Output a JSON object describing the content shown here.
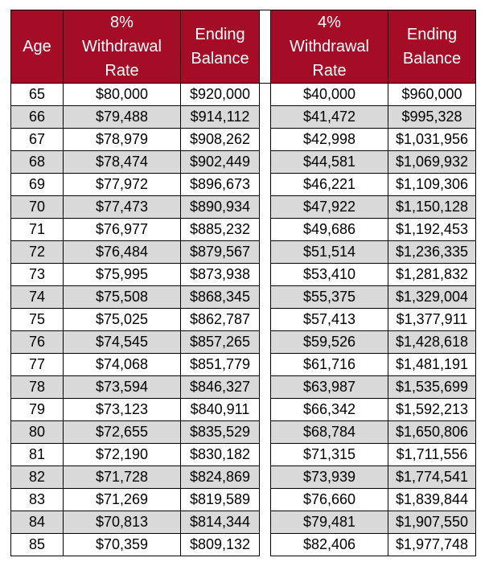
{
  "headers": {
    "age": "Age",
    "rate8": [
      "8%",
      "Withdrawal",
      "Rate"
    ],
    "bal8": [
      "Ending",
      "Balance"
    ],
    "rate4": [
      "4%",
      "Withdrawal",
      "Rate"
    ],
    "bal4": [
      "Ending",
      "Balance"
    ]
  },
  "rows": [
    {
      "age": "65",
      "rate8": "$80,000",
      "bal8": "$920,000",
      "rate4": "$40,000",
      "bal4": "$960,000"
    },
    {
      "age": "66",
      "rate8": "$79,488",
      "bal8": "$914,112",
      "rate4": "$41,472",
      "bal4": "$995,328"
    },
    {
      "age": "67",
      "rate8": "$78,979",
      "bal8": "$908,262",
      "rate4": "$42,998",
      "bal4": "$1,031,956"
    },
    {
      "age": "68",
      "rate8": "$78,474",
      "bal8": "$902,449",
      "rate4": "$44,581",
      "bal4": "$1,069,932"
    },
    {
      "age": "69",
      "rate8": "$77,972",
      "bal8": "$896,673",
      "rate4": "$46,221",
      "bal4": "$1,109,306"
    },
    {
      "age": "70",
      "rate8": "$77,473",
      "bal8": "$890,934",
      "rate4": "$47,922",
      "bal4": "$1,150,128"
    },
    {
      "age": "71",
      "rate8": "$76,977",
      "bal8": "$885,232",
      "rate4": "$49,686",
      "bal4": "$1,192,453"
    },
    {
      "age": "72",
      "rate8": "$76,484",
      "bal8": "$879,567",
      "rate4": "$51,514",
      "bal4": "$1,236,335"
    },
    {
      "age": "73",
      "rate8": "$75,995",
      "bal8": "$873,938",
      "rate4": "$53,410",
      "bal4": "$1,281,832"
    },
    {
      "age": "74",
      "rate8": "$75,508",
      "bal8": "$868,345",
      "rate4": "$55,375",
      "bal4": "$1,329,004"
    },
    {
      "age": "75",
      "rate8": "$75,025",
      "bal8": "$862,787",
      "rate4": "$57,413",
      "bal4": "$1,377,911"
    },
    {
      "age": "76",
      "rate8": "$74,545",
      "bal8": "$857,265",
      "rate4": "$59,526",
      "bal4": "$1,428,618"
    },
    {
      "age": "77",
      "rate8": "$74,068",
      "bal8": "$851,779",
      "rate4": "$61,716",
      "bal4": "$1,481,191"
    },
    {
      "age": "78",
      "rate8": "$73,594",
      "bal8": "$846,327",
      "rate4": "$63,987",
      "bal4": "$1,535,699"
    },
    {
      "age": "79",
      "rate8": "$73,123",
      "bal8": "$840,911",
      "rate4": "$66,342",
      "bal4": "$1,592,213"
    },
    {
      "age": "80",
      "rate8": "$72,655",
      "bal8": "$835,529",
      "rate4": "$68,784",
      "bal4": "$1,650,806"
    },
    {
      "age": "81",
      "rate8": "$72,190",
      "bal8": "$830,182",
      "rate4": "$71,315",
      "bal4": "$1,711,556"
    },
    {
      "age": "82",
      "rate8": "$71,728",
      "bal8": "$824,869",
      "rate4": "$73,939",
      "bal4": "$1,774,541"
    },
    {
      "age": "83",
      "rate8": "$71,269",
      "bal8": "$819,589",
      "rate4": "$76,660",
      "bal4": "$1,839,844"
    },
    {
      "age": "84",
      "rate8": "$70,813",
      "bal8": "$814,344",
      "rate4": "$79,481",
      "bal4": "$1,907,550"
    },
    {
      "age": "85",
      "rate8": "$70,359",
      "bal8": "$809,132",
      "rate4": "$82,406",
      "bal4": "$1,977,748"
    }
  ],
  "colors": {
    "header_bg": "#a50c25",
    "header_text": "#ffffff",
    "alt_row": "#d9d9d9"
  }
}
